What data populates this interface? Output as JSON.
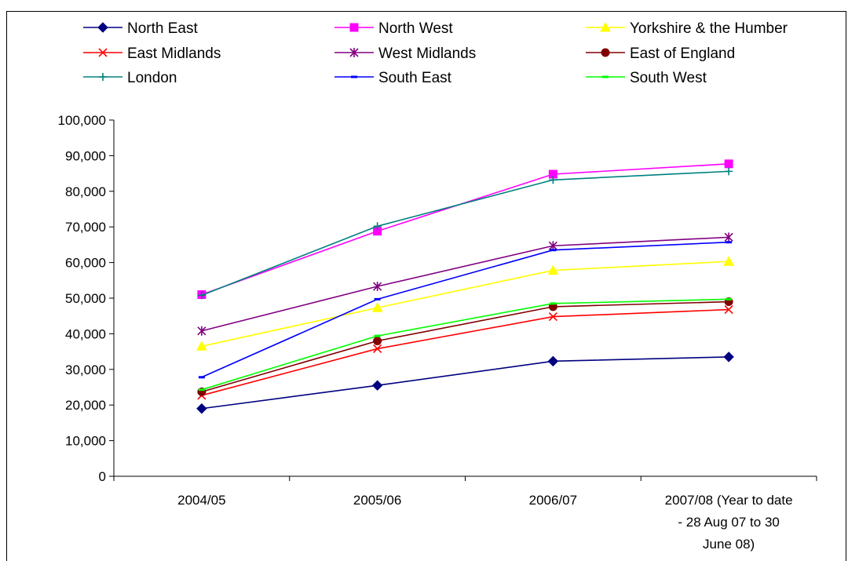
{
  "chart_data": {
    "type": "line",
    "title": "",
    "xlabel": "",
    "ylabel": "",
    "categories": [
      "2004/05",
      "2005/06",
      "2006/07",
      "2007/08 (Year to date - 28 Aug 07 to 30 June 08)"
    ],
    "category_lines": [
      [
        "2004/05"
      ],
      [
        "2005/06"
      ],
      [
        "2006/07"
      ],
      [
        "2007/08 (Year to date",
        "- 28 Aug 07 to 30",
        "June 08)"
      ]
    ],
    "ylim": [
      0,
      100000
    ],
    "yticks": [
      0,
      10000,
      20000,
      30000,
      40000,
      50000,
      60000,
      70000,
      80000,
      90000,
      100000
    ],
    "ytick_labels": [
      "0",
      "10,000",
      "20,000",
      "30,000",
      "40,000",
      "50,000",
      "60,000",
      "70,000",
      "80,000",
      "90,000",
      "100,000"
    ],
    "grid": false,
    "legend_position": "top",
    "series": [
      {
        "name": "North East",
        "color": "#000080",
        "marker": "diamond",
        "values": [
          19000,
          25500,
          32300,
          33500
        ]
      },
      {
        "name": "North West",
        "color": "#FF00FF",
        "marker": "square",
        "values": [
          51000,
          68800,
          84800,
          87700
        ]
      },
      {
        "name": "Yorkshire & the Humber",
        "color": "#FFFF00",
        "marker": "triangle",
        "values": [
          36500,
          47300,
          57800,
          60300
        ]
      },
      {
        "name": "East Midlands",
        "color": "#FF0000",
        "marker": "x",
        "values": [
          22700,
          35800,
          44800,
          46800
        ]
      },
      {
        "name": "West Midlands",
        "color": "#800080",
        "marker": "star",
        "values": [
          40800,
          53300,
          64700,
          67100
        ]
      },
      {
        "name": "East of England",
        "color": "#800000",
        "marker": "circle",
        "values": [
          23700,
          38000,
          47600,
          49000
        ]
      },
      {
        "name": "London",
        "color": "#008080",
        "marker": "plus",
        "values": [
          50800,
          70200,
          83200,
          85600
        ]
      },
      {
        "name": "South East",
        "color": "#0000FF",
        "marker": "dash",
        "values": [
          27800,
          49700,
          63500,
          65700
        ]
      },
      {
        "name": "South West",
        "color": "#00FF00",
        "marker": "dash",
        "values": [
          24300,
          39400,
          48500,
          49700
        ]
      }
    ]
  }
}
